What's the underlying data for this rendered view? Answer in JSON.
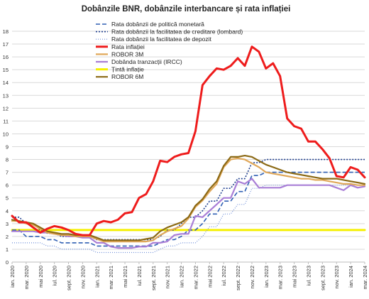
{
  "chart_data": {
    "type": "line",
    "title": "Dobânzile BNR, dobânzile interbancare și rata inflației",
    "xlabel": "",
    "ylabel": "",
    "ylim": [
      0,
      18
    ],
    "yticks": [
      0,
      1,
      2,
      3,
      4,
      5,
      6,
      7,
      8,
      9,
      10,
      11,
      12,
      13,
      14,
      15,
      16,
      17,
      18
    ],
    "grid": "horizontal",
    "legend_position": "top-left (inside plot)",
    "x_tick_labels": [
      "ian. 2020",
      "mar. 2020",
      "mai 2020",
      "iul. 2020",
      "sept. 2020",
      "nov. 2020",
      "ian. 2021",
      "mar. 2021",
      "mai 2021",
      "iul. 2021",
      "sept. 2021",
      "nov. 2021",
      "ian. 2022",
      "mar. 2022",
      "mai 2022",
      "iul. 2022",
      "sept. 2022",
      "nov. 2022",
      "ian. 2023",
      "mar. 2023",
      "mai 2023",
      "iul. 2023",
      "sept. 2023",
      "nov. 2023",
      "ian. 2024",
      "mar. 2024"
    ],
    "x_months": [
      "2020-01",
      "2020-02",
      "2020-03",
      "2020-04",
      "2020-05",
      "2020-06",
      "2020-07",
      "2020-08",
      "2020-09",
      "2020-10",
      "2020-11",
      "2020-12",
      "2021-01",
      "2021-02",
      "2021-03",
      "2021-04",
      "2021-05",
      "2021-06",
      "2021-07",
      "2021-08",
      "2021-09",
      "2021-10",
      "2021-11",
      "2021-12",
      "2022-01",
      "2022-02",
      "2022-03",
      "2022-04",
      "2022-05",
      "2022-06",
      "2022-07",
      "2022-08",
      "2022-09",
      "2022-10",
      "2022-11",
      "2022-12",
      "2023-01",
      "2023-02",
      "2023-03",
      "2023-04",
      "2023-05",
      "2023-06",
      "2023-07",
      "2023-08",
      "2023-09",
      "2023-10",
      "2023-11",
      "2023-12",
      "2024-01",
      "2024-02",
      "2024-03"
    ],
    "series": [
      {
        "name": "Rata dobânzii de politică monetară",
        "color": "#2f5fb3",
        "style": "dash",
        "width": 1.6,
        "values": [
          2.5,
          2.5,
          2.0,
          2.0,
          2.0,
          1.75,
          1.75,
          1.5,
          1.5,
          1.5,
          1.5,
          1.5,
          1.25,
          1.25,
          1.25,
          1.25,
          1.25,
          1.25,
          1.25,
          1.25,
          1.25,
          1.5,
          1.75,
          1.75,
          2.0,
          2.5,
          2.5,
          3.0,
          3.75,
          3.75,
          4.75,
          4.75,
          5.5,
          5.5,
          6.75,
          6.75,
          7.0,
          7.0,
          7.0,
          7.0,
          7.0,
          7.0,
          7.0,
          7.0,
          7.0,
          7.0,
          7.0,
          7.0,
          7.0,
          7.0,
          7.0
        ]
      },
      {
        "name": "Rata dobânzii la facilitatea de creditare (lombard)",
        "color": "#1f3f8f",
        "style": "dot",
        "width": 1.6,
        "values": [
          3.5,
          3.5,
          3.0,
          3.0,
          2.5,
          2.25,
          2.25,
          2.0,
          2.0,
          2.0,
          2.0,
          2.0,
          1.75,
          1.75,
          1.75,
          1.75,
          1.75,
          1.75,
          1.75,
          1.75,
          1.75,
          2.0,
          2.5,
          2.5,
          3.0,
          3.5,
          3.5,
          4.0,
          4.75,
          4.75,
          5.75,
          5.75,
          6.5,
          6.5,
          7.75,
          7.75,
          8.0,
          8.0,
          8.0,
          8.0,
          8.0,
          8.0,
          8.0,
          8.0,
          8.0,
          8.0,
          8.0,
          8.0,
          8.0,
          8.0,
          8.0
        ]
      },
      {
        "name": "Rata dobânzii la facilitatea de depozit",
        "color": "#6f8fd8",
        "style": "finedot",
        "width": 1.2,
        "values": [
          1.5,
          1.5,
          1.5,
          1.5,
          1.5,
          1.25,
          1.25,
          1.0,
          1.0,
          1.0,
          1.0,
          1.0,
          0.75,
          0.75,
          0.75,
          0.75,
          0.75,
          0.75,
          0.75,
          0.75,
          0.75,
          1.0,
          1.25,
          1.25,
          1.5,
          1.5,
          1.5,
          2.0,
          2.75,
          2.75,
          3.75,
          3.75,
          4.5,
          4.5,
          5.75,
          5.75,
          6.0,
          6.0,
          6.0,
          6.0,
          6.0,
          6.0,
          6.0,
          6.0,
          6.0,
          6.0,
          6.0,
          6.0,
          6.0,
          6.0,
          6.0
        ]
      },
      {
        "name": "Rata inflației",
        "color": "#ee1c1c",
        "style": "solid",
        "width": 3,
        "values": [
          3.6,
          3.1,
          3.1,
          2.7,
          2.3,
          2.6,
          2.8,
          2.7,
          2.5,
          2.2,
          2.1,
          2.1,
          3.0,
          3.2,
          3.1,
          3.3,
          3.8,
          3.9,
          5.0,
          5.3,
          6.3,
          7.9,
          7.8,
          8.2,
          8.4,
          8.5,
          10.2,
          13.8,
          14.5,
          15.1,
          15.0,
          15.3,
          15.9,
          15.3,
          16.8,
          16.4,
          15.1,
          15.5,
          14.5,
          11.2,
          10.6,
          10.4,
          9.4,
          9.4,
          8.8,
          8.1,
          6.7,
          6.6,
          7.4,
          7.2,
          6.6
        ]
      },
      {
        "name": "ROBOR 3M",
        "color": "#e0a85a",
        "style": "solid",
        "width": 2.2,
        "values": [
          3.2,
          3.2,
          3.0,
          2.9,
          2.6,
          2.3,
          2.2,
          2.1,
          2.1,
          2.0,
          2.0,
          2.0,
          1.8,
          1.6,
          1.6,
          1.6,
          1.6,
          1.6,
          1.6,
          1.6,
          1.7,
          2.1,
          2.4,
          2.6,
          2.8,
          3.4,
          4.3,
          4.8,
          5.5,
          6.1,
          7.4,
          8.0,
          8.1,
          8.0,
          7.7,
          7.4,
          7.0,
          6.9,
          6.8,
          6.7,
          6.6,
          6.5,
          6.5,
          6.4,
          6.4,
          6.3,
          6.2,
          6.1,
          6.1,
          6.0,
          6.0
        ]
      },
      {
        "name": "Dobânda tranzacții (IRCC)",
        "color": "#a97ed6",
        "style": "solid",
        "width": 2.2,
        "values": [
          2.4,
          2.4,
          2.4,
          2.4,
          2.3,
          2.3,
          2.2,
          2.1,
          2.0,
          2.0,
          1.9,
          1.9,
          1.5,
          1.5,
          1.2,
          1.1,
          1.1,
          1.1,
          1.2,
          1.2,
          1.5,
          1.5,
          1.6,
          2.1,
          2.2,
          2.2,
          3.6,
          3.5,
          4.0,
          4.5,
          5.0,
          5.0,
          6.3,
          6.1,
          6.5,
          5.8,
          5.8,
          5.8,
          5.8,
          6.0,
          6.0,
          6.0,
          6.0,
          6.0,
          6.0,
          6.0,
          5.8,
          5.6,
          6.0,
          5.8,
          5.9
        ]
      },
      {
        "name": "Țintă inflație",
        "color": "#f5f000",
        "style": "solid",
        "width": 3,
        "values": [
          2.5,
          2.5,
          2.5,
          2.5,
          2.5,
          2.5,
          2.5,
          2.5,
          2.5,
          2.5,
          2.5,
          2.5,
          2.5,
          2.5,
          2.5,
          2.5,
          2.5,
          2.5,
          2.5,
          2.5,
          2.5,
          2.5,
          2.5,
          2.5,
          2.5,
          2.5,
          2.5,
          2.5,
          2.5,
          2.5,
          2.5,
          2.5,
          2.5,
          2.5,
          2.5,
          2.5,
          2.5,
          2.5,
          2.5,
          2.5,
          2.5,
          2.5,
          2.5,
          2.5,
          2.5,
          2.5,
          2.5,
          2.5,
          2.5,
          2.5,
          2.5
        ]
      },
      {
        "name": "ROBOR 6M",
        "color": "#8b6914",
        "style": "solid",
        "width": 2.2,
        "values": [
          3.3,
          3.2,
          3.1,
          3.0,
          2.7,
          2.4,
          2.3,
          2.2,
          2.2,
          2.1,
          2.1,
          2.1,
          1.9,
          1.7,
          1.7,
          1.7,
          1.7,
          1.7,
          1.7,
          1.8,
          1.9,
          2.4,
          2.7,
          2.9,
          3.1,
          3.5,
          4.4,
          4.9,
          5.7,
          6.3,
          7.5,
          8.2,
          8.2,
          8.3,
          8.2,
          7.9,
          7.6,
          7.4,
          7.2,
          7.0,
          6.9,
          6.8,
          6.7,
          6.6,
          6.5,
          6.5,
          6.5,
          6.4,
          6.3,
          6.2,
          6.1
        ]
      }
    ]
  }
}
